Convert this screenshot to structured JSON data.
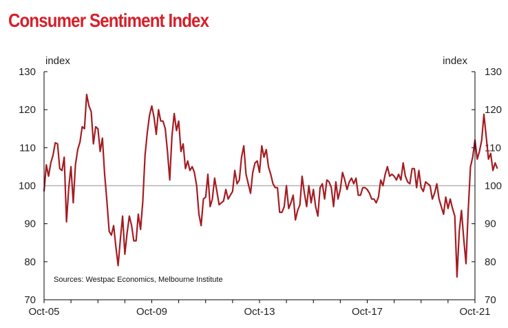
{
  "colors": {
    "title": "#d6202a",
    "line": "#a41c22",
    "reference": "#b3b3b3",
    "axis": "#000000"
  },
  "chart_data": {
    "type": "line",
    "title": "Consumer Sentiment Index",
    "ylabel_left": "index",
    "ylabel_right": "index",
    "ylim": [
      70,
      130
    ],
    "yticks": [
      70,
      80,
      90,
      100,
      110,
      120,
      130
    ],
    "x_tick_labels": [
      "Oct-05",
      "Oct-09",
      "Oct-13",
      "Oct-17",
      "Oct-21"
    ],
    "reference_line": 100,
    "source_note": "Sources: Westpac Economics, Melbourne Institute",
    "x_start": "Oct-05",
    "x_start_decimal": 2005.75,
    "x_end_decimal": 2021.75,
    "series": [
      {
        "name": "Consumer Sentiment Index",
        "frequency": "monthly",
        "values": [
          98.5,
          105.5,
          102.5,
          106,
          108,
          111.3,
          111,
          104.5,
          104,
          107.5,
          90.5,
          99.5,
          105,
          95.5,
          105.5,
          109.5,
          111.5,
          115.5,
          115,
          124,
          121,
          119.5,
          111,
          115.5,
          115,
          109,
          112.5,
          103,
          96,
          88,
          87,
          89.5,
          84,
          79,
          86,
          92,
          82,
          87.5,
          92,
          89.5,
          85.5,
          85.5,
          92.5,
          88.5,
          96,
          108,
          114,
          118.5,
          121,
          118,
          113.5,
          120,
          117,
          117,
          115,
          109,
          101.5,
          113,
          119,
          114.5,
          117,
          109,
          111,
          104.5,
          106.5,
          104,
          105,
          103.5,
          100,
          92.5,
          89.5,
          96.5,
          97,
          103,
          94.5,
          96.5,
          102,
          98.5,
          95,
          95.5,
          96,
          99,
          96.5,
          97.5,
          98.5,
          104,
          100.5,
          101.5,
          107.5,
          110.5,
          103,
          100.5,
          98,
          103.5,
          106,
          106.5,
          103.5,
          110.5,
          107.5,
          109.5,
          105,
          103,
          100.5,
          99.5,
          99.5,
          93,
          93,
          94.5,
          100,
          94,
          95.5,
          97.5,
          91,
          93.5,
          95,
          102.5,
          98,
          94.5,
          100,
          95.5,
          99,
          94.5,
          92,
          99.5,
          100.5,
          96.5,
          101.5,
          101,
          99.5,
          94.5,
          101,
          96.5,
          99,
          103.5,
          101.5,
          99,
          101,
          102,
          100.5,
          102,
          97.5,
          97.5,
          99.5,
          99.5,
          99,
          98,
          96.5,
          96.5,
          95.5,
          97,
          101.5,
          100,
          103,
          105,
          102.5,
          103,
          102.5,
          101.5,
          103,
          101.5,
          106,
          102.5,
          101,
          100.5,
          104.5,
          104.5,
          99.5,
          104,
          99.5,
          98.5,
          101,
          100.5,
          100,
          96.5,
          98,
          100.5,
          96.5,
          94.5,
          92.5,
          97,
          94,
          96.5,
          94,
          92,
          76,
          88,
          93.5,
          86,
          79.5,
          93.5,
          105,
          107.5,
          112,
          107,
          109,
          112,
          118.8,
          113,
          107,
          108.5,
          104,
          106,
          104.5
        ]
      }
    ]
  }
}
